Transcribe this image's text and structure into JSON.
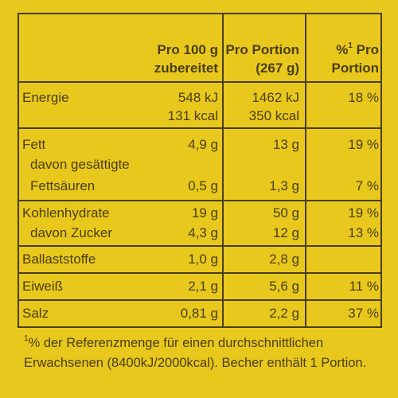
{
  "header": {
    "col1_line1": "Pro 100 g",
    "col1_line2": "zubereitet",
    "col2_line1": "Pro Portion",
    "col2_line2": "(267 g)",
    "col3_sup": "1",
    "col3_line1_rest": "Pro",
    "col3_line2": "Portion"
  },
  "rows": {
    "energie": {
      "label": "Energie",
      "v100_kj": "548 kJ",
      "v100_kcal": "131 kcal",
      "vp_kj": "1462 kJ",
      "vp_kcal": "350 kcal",
      "pct": "18 %"
    },
    "fett": {
      "label": "Fett",
      "v100": "4,9 g",
      "vp": "13 g",
      "pct": "19 %"
    },
    "gesaettigte": {
      "label_line1": "davon gesättigte",
      "label_line2": "Fettsäuren",
      "v100": "0,5 g",
      "vp": "1,3 g",
      "pct": "7 %"
    },
    "kohlenhydrate": {
      "label": "Kohlenhydrate",
      "v100": "19 g",
      "vp": "50 g",
      "pct": "19 %"
    },
    "zucker": {
      "label": "davon Zucker",
      "v100": "4,3 g",
      "vp": "12 g",
      "pct": "13 %"
    },
    "ballaststoffe": {
      "label": "Ballaststoffe",
      "v100": "1,0 g",
      "vp": "2,8 g",
      "pct": ""
    },
    "eiweiss": {
      "label": "Eiweiß",
      "v100": "2,1 g",
      "vp": "5,6 g",
      "pct": "11 %"
    },
    "salz": {
      "label": "Salz",
      "v100": "0,81 g",
      "vp": "2,2 g",
      "pct": "37 %"
    }
  },
  "footnote": {
    "sup": "1",
    "line1": "% der Referenzmenge für einen durchschnittlichen",
    "line2": "Erwachsenen (8400kJ/2000kcal). Becher enthält 1 Portion."
  }
}
